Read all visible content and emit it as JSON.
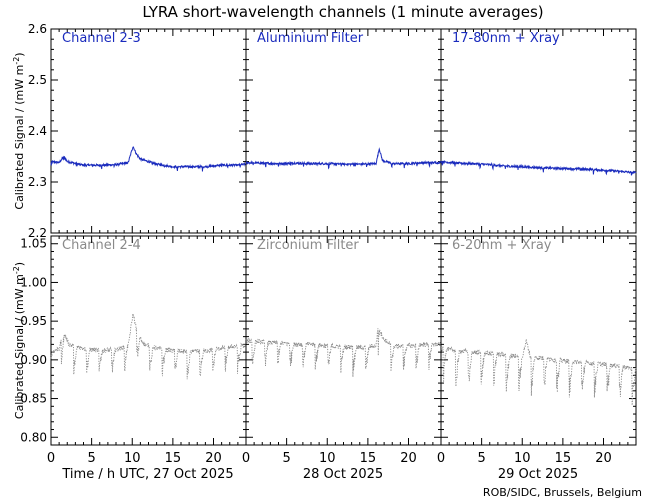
{
  "title": "LYRA short-wavelength channels (1 minute averages)",
  "credit": "ROB/SIDC, Brussels, Belgium",
  "ylabel": "Calibrated Signal / (mW m",
  "ylabel_sup": "-2",
  "ylabel_close": ")",
  "xlabel_days": [
    "Time / h UTC, 27 Oct 2025",
    "28 Oct 2025",
    "29 Oct 2025"
  ],
  "colors": {
    "top": "#1a2bbd",
    "bottom": "#8a8a8a",
    "axis": "#000000",
    "trace_top": "#1a2bbd",
    "trace_bottom": "#888888"
  },
  "chart_data": [
    {
      "type": "line",
      "row": "top",
      "panels": [
        "Channel 2-3",
        "Aluminium Filter",
        "17-80nm + Xray"
      ],
      "ylim": [
        2.2,
        2.6
      ],
      "yticks": [
        "2.2",
        "2.3",
        "2.4",
        "2.5",
        "2.6"
      ],
      "xlim": [
        0,
        24
      ],
      "xticks": [
        "0",
        "5",
        "10",
        "15",
        "20"
      ],
      "series": [
        {
          "points": [
            [
              0,
              2.34
            ],
            [
              1,
              2.338
            ],
            [
              1.6,
              2.35
            ],
            [
              2,
              2.34
            ],
            [
              4,
              2.333
            ],
            [
              6,
              2.333
            ],
            [
              8,
              2.334
            ],
            [
              9.5,
              2.338
            ],
            [
              10.1,
              2.37
            ],
            [
              10.5,
              2.355
            ],
            [
              11,
              2.345
            ],
            [
              13,
              2.335
            ],
            [
              15,
              2.33
            ],
            [
              17,
              2.33
            ],
            [
              19,
              2.33
            ],
            [
              21,
              2.333
            ],
            [
              23,
              2.333
            ],
            [
              24,
              2.335
            ]
          ]
        },
        {
          "points": [
            [
              0,
              2.338
            ],
            [
              2,
              2.337
            ],
            [
              4,
              2.336
            ],
            [
              6,
              2.337
            ],
            [
              8,
              2.336
            ],
            [
              10,
              2.336
            ],
            [
              12,
              2.335
            ],
            [
              14,
              2.335
            ],
            [
              16,
              2.336
            ],
            [
              16.4,
              2.365
            ],
            [
              16.8,
              2.342
            ],
            [
              18,
              2.336
            ],
            [
              20,
              2.336
            ],
            [
              22,
              2.338
            ],
            [
              24,
              2.338
            ]
          ]
        },
        {
          "points": [
            [
              0,
              2.34
            ],
            [
              2,
              2.337
            ],
            [
              4,
              2.336
            ],
            [
              6,
              2.334
            ],
            [
              8,
              2.331
            ],
            [
              10,
              2.33
            ],
            [
              12,
              2.328
            ],
            [
              14,
              2.327
            ],
            [
              16,
              2.326
            ],
            [
              18,
              2.325
            ],
            [
              20,
              2.323
            ],
            [
              22,
              2.321
            ],
            [
              24,
              2.318
            ]
          ]
        }
      ]
    },
    {
      "type": "line",
      "row": "bottom",
      "panels": [
        "Channel 2-4",
        "Zirconium Filter",
        "6-20nm + Xray"
      ],
      "ylim": [
        0.79,
        1.06
      ],
      "yticks": [
        "0.80",
        "0.85",
        "0.90",
        "0.95",
        "1.00",
        "1.05"
      ],
      "xlim": [
        0,
        24
      ],
      "xticks": [
        "0",
        "5",
        "10",
        "15",
        "20"
      ],
      "series": [
        {
          "points": [
            [
              0,
              0.91
            ],
            [
              1,
              0.915
            ],
            [
              1.6,
              0.935
            ],
            [
              2.2,
              0.92
            ],
            [
              4,
              0.915
            ],
            [
              6,
              0.912
            ],
            [
              8,
              0.913
            ],
            [
              9.5,
              0.918
            ],
            [
              10.1,
              0.96
            ],
            [
              10.6,
              0.935
            ],
            [
              11.5,
              0.92
            ],
            [
              13,
              0.915
            ],
            [
              15,
              0.912
            ],
            [
              17,
              0.91
            ],
            [
              19,
              0.912
            ],
            [
              21,
              0.915
            ],
            [
              23,
              0.918
            ],
            [
              24,
              0.918
            ]
          ]
        },
        {
          "points": [
            [
              0,
              0.925
            ],
            [
              2,
              0.923
            ],
            [
              4,
              0.922
            ],
            [
              6,
              0.92
            ],
            [
              8,
              0.92
            ],
            [
              10,
              0.918
            ],
            [
              12,
              0.917
            ],
            [
              14,
              0.916
            ],
            [
              16,
              0.918
            ],
            [
              16.4,
              0.955
            ],
            [
              16.8,
              0.928
            ],
            [
              18,
              0.918
            ],
            [
              20,
              0.918
            ],
            [
              22,
              0.92
            ],
            [
              24,
              0.92
            ]
          ]
        },
        {
          "points": [
            [
              0,
              0.915
            ],
            [
              2,
              0.912
            ],
            [
              4,
              0.91
            ],
            [
              6,
              0.908
            ],
            [
              8,
              0.906
            ],
            [
              10,
              0.904
            ],
            [
              10.5,
              0.925
            ],
            [
              11,
              0.904
            ],
            [
              12,
              0.903
            ],
            [
              14,
              0.9
            ],
            [
              16,
              0.898
            ],
            [
              18,
              0.896
            ],
            [
              20,
              0.894
            ],
            [
              22,
              0.892
            ],
            [
              24,
              0.888
            ]
          ]
        }
      ]
    }
  ]
}
